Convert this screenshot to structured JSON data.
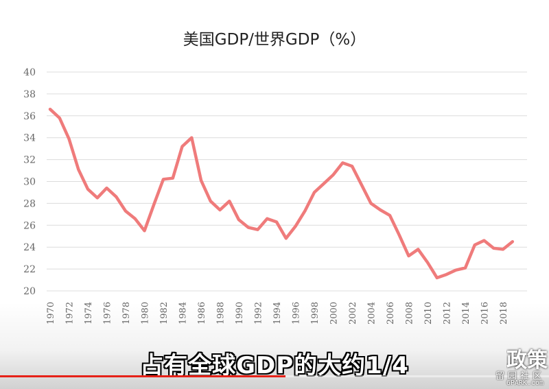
{
  "chart_data": {
    "type": "line",
    "title": "美国GDP/世界GDP（%）",
    "xlabel": "",
    "ylabel": "",
    "ylim": [
      20,
      40
    ],
    "yticks": [
      "20",
      "22",
      "24",
      "26",
      "28",
      "30",
      "32",
      "34",
      "36",
      "38",
      "40"
    ],
    "xticks": [
      "1970",
      "1972",
      "1974",
      "1976",
      "1978",
      "1980",
      "1982",
      "1984",
      "1986",
      "1988",
      "1990",
      "1992",
      "1994",
      "1996",
      "1998",
      "2000",
      "2002",
      "2004",
      "2006",
      "2008",
      "2010",
      "2012",
      "2014",
      "2016",
      "2018"
    ],
    "grid": "horizontal",
    "legend": "none",
    "line_color": "#ef7b7b",
    "series": [
      {
        "x": [
          1970,
          1971,
          1972,
          1973,
          1974,
          1975,
          1976,
          1977,
          1978,
          1979,
          1980,
          1981,
          1982,
          1983,
          1984,
          1985,
          1986,
          1987,
          1988,
          1989,
          1990,
          1991,
          1992,
          1993,
          1994,
          1995,
          1996,
          1997,
          1998,
          1999,
          2000,
          2001,
          2002,
          2003,
          2004,
          2005,
          2006,
          2007,
          2008,
          2009,
          2010,
          2011,
          2012,
          2013,
          2014,
          2015,
          2016,
          2017,
          2018,
          2019
        ],
        "values": [
          36.6,
          35.8,
          33.9,
          31.1,
          29.3,
          28.5,
          29.4,
          28.6,
          27.3,
          26.6,
          25.5,
          27.9,
          30.2,
          30.3,
          33.2,
          34.0,
          30.1,
          28.2,
          27.4,
          28.2,
          26.5,
          25.8,
          25.6,
          26.6,
          26.3,
          24.8,
          25.9,
          27.3,
          29.0,
          29.8,
          30.6,
          31.7,
          31.4,
          29.7,
          28.0,
          27.4,
          26.9,
          25.1,
          23.2,
          23.8,
          22.6,
          21.2,
          21.5,
          21.9,
          22.1,
          24.2,
          24.6,
          23.9,
          23.8,
          24.5
        ]
      }
    ]
  },
  "overlay": {
    "subtitle": "占有全球GDP的大约1/4",
    "progress": 0.52,
    "progress_color": "#e62117",
    "corner_text": "政策",
    "watermark_cn": "留园社区",
    "watermark_url": "6PARK.com"
  }
}
